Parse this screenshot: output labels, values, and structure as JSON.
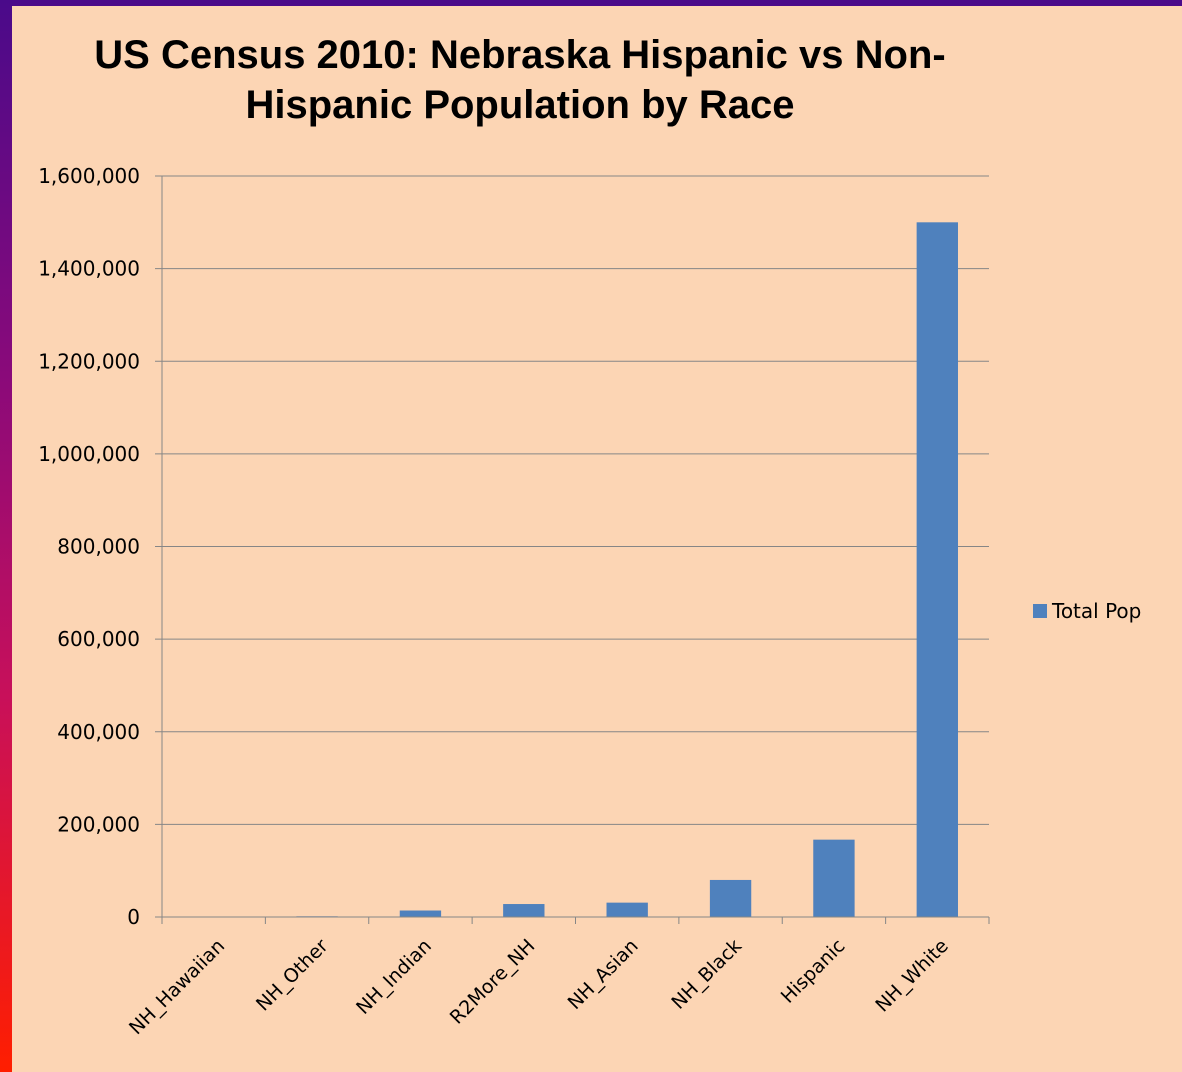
{
  "chart_data": {
    "type": "bar",
    "title_lines": [
      "US Census 2010: Nebraska Hispanic vs Non-",
      "Hispanic Population by Race"
    ],
    "categories": [
      "NH_Hawaiian",
      "NH_Other",
      "NH_Indian",
      "R2More_NH",
      "NH_Asian",
      "NH_Black",
      "Hispanic",
      "NH_White"
    ],
    "series": [
      {
        "name": "Total Pop",
        "values": [
          1000,
          1500,
          14000,
          28000,
          31000,
          80000,
          167000,
          1500000
        ]
      }
    ],
    "ylim": [
      0,
      1600000
    ],
    "yticks": [
      0,
      200000,
      400000,
      600000,
      800000,
      1000000,
      1200000,
      1400000,
      1600000
    ],
    "ytick_labels": [
      "0",
      "200,000",
      "400,000",
      "600,000",
      "800,000",
      "1,000,000",
      "1,200,000",
      "1,400,000",
      "1,600,000"
    ],
    "grid": true,
    "legend_position": "right",
    "colors": {
      "bar": "#4f81bd",
      "background": "#fcd5b4",
      "grid": "#868686"
    }
  }
}
